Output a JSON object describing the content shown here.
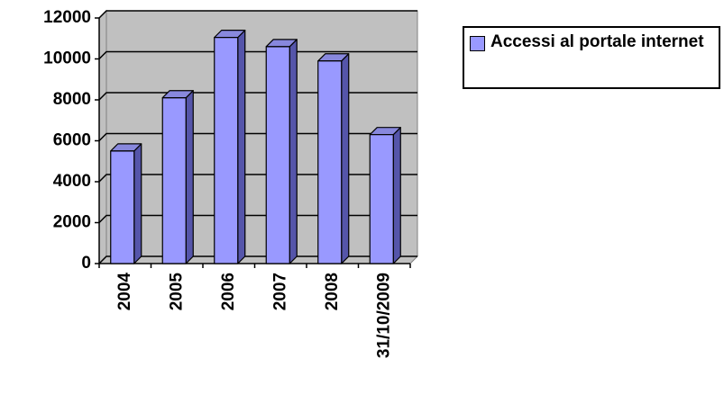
{
  "chart_data": {
    "type": "bar3d",
    "categories": [
      "2004",
      "2005",
      "2006",
      "2007",
      "2008",
      "31/10/2009"
    ],
    "series": [
      {
        "name": "Accessi al portale internet",
        "color": "#9999ff",
        "values": [
          5500,
          8100,
          11050,
          10600,
          9900,
          6300
        ]
      }
    ],
    "ylim": [
      0,
      12000
    ],
    "yticks": [
      0,
      2000,
      4000,
      6000,
      8000,
      10000,
      12000
    ],
    "grid": true,
    "legend": "right"
  }
}
